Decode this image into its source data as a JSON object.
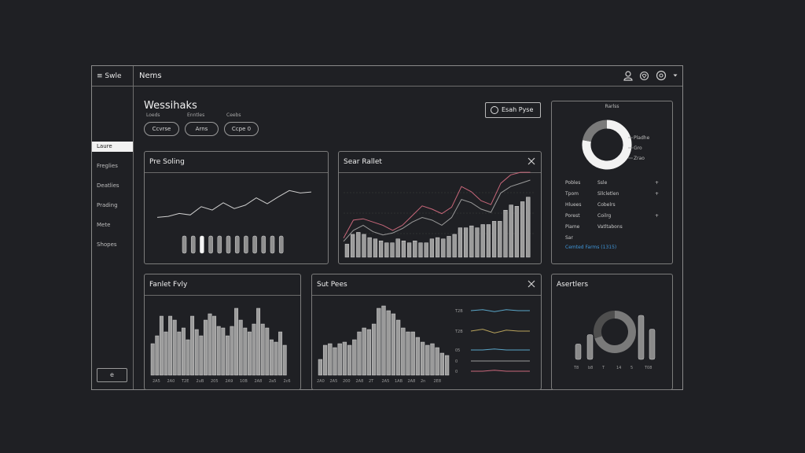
{
  "window": {
    "brand": "≡ Swle",
    "title": "Nems"
  },
  "header_icons": [
    "user-icon",
    "heart-icon",
    "settings-icon",
    "chevron-down-icon"
  ],
  "sidebar": {
    "items": [
      {
        "label": "Laure",
        "active": true
      },
      {
        "label": "Freglies",
        "active": false
      },
      {
        "label": "Deatlies",
        "active": false
      },
      {
        "label": "Prading",
        "active": false
      },
      {
        "label": "Mete",
        "active": false
      },
      {
        "label": "Shopes",
        "active": false
      }
    ],
    "footer_button": "e"
  },
  "page": {
    "title": "Wessihaks",
    "filters": [
      {
        "label": "Loeds",
        "value": "Ccvrse"
      },
      {
        "label": "Enntles",
        "value": "Arns"
      },
      {
        "label": "Ceebs",
        "value": "Ccpe 0"
      }
    ],
    "action_button": "Esah Pyse"
  },
  "panels": {
    "top_left": {
      "title": "Pre Soling"
    },
    "top_mid": {
      "title": "Sear Rallet"
    },
    "top_right": {
      "donut_title": "Rarlss",
      "donut_legend": [
        "Pladhe",
        "Gro",
        "Zrao"
      ],
      "rows": [
        {
          "k": "Pobles",
          "v": "Ssle",
          "mark": "+"
        },
        {
          "k": "Tpom",
          "v": "Sllcletlen",
          "mark": "+"
        },
        {
          "k": "Hluees",
          "v": "Cobelrs",
          "mark": ""
        },
        {
          "k": "Porest",
          "v": "Coilrg",
          "mark": "+"
        },
        {
          "k": "Piame",
          "v": "Vatltabons",
          "mark": ""
        },
        {
          "k": "Sar",
          "v": "",
          "mark": ""
        }
      ],
      "link": "Cemted Farms (1315)"
    },
    "bot_left": {
      "title": "Fanlet Fvly",
      "x_labels": [
        "2A5",
        "2A0",
        "T2E",
        "2uB",
        "205",
        "2A9",
        "10B",
        "2A8",
        "2a5",
        "2c6"
      ]
    },
    "bot_mid": {
      "title": "Sut Pees",
      "x_labels": [
        "2A0",
        "2A5",
        "200",
        "2A8",
        "2T",
        "2A5",
        "1AB",
        "2A8",
        "2n",
        "2E8"
      ],
      "legend_labels": [
        "T2B",
        "T2B",
        "05",
        "0",
        "0"
      ]
    },
    "bot_right": {
      "title": "Asertlers",
      "x_labels": [
        "T8",
        "b8",
        "T",
        "14",
        "5",
        "T08"
      ]
    }
  },
  "chart_data": [
    {
      "type": "line",
      "name": "pre-soling-line",
      "values": [
        30,
        32,
        38,
        35,
        52,
        45,
        60,
        48,
        55,
        70,
        58,
        72,
        85,
        80,
        82
      ]
    },
    {
      "type": "bar",
      "name": "pre-soling-bars",
      "values": [
        22,
        22,
        22,
        22,
        22,
        22,
        22,
        22,
        22,
        22,
        22,
        22
      ],
      "highlight_index": 2
    },
    {
      "type": "bar",
      "name": "sear-rallet",
      "values": [
        20,
        35,
        38,
        35,
        30,
        28,
        25,
        22,
        22,
        28,
        25,
        22,
        25,
        22,
        22,
        28,
        30,
        28,
        32,
        35,
        45,
        45,
        48,
        45,
        50,
        50,
        55,
        55,
        72,
        80,
        78,
        85,
        92
      ],
      "lines": [
        {
          "color": "#c9677a",
          "values": [
            10,
            38,
            40,
            35,
            30,
            22,
            30,
            45,
            60,
            55,
            48,
            58,
            90,
            82,
            68,
            62,
            95,
            108,
            112,
            112
          ]
        },
        {
          "color": "#9a9a9a",
          "values": [
            5,
            22,
            30,
            20,
            15,
            18,
            25,
            35,
            42,
            38,
            30,
            42,
            70,
            65,
            55,
            50,
            80,
            90,
            95,
            100
          ]
        }
      ]
    },
    {
      "type": "bar",
      "name": "fanlet-fvly",
      "values": [
        40,
        50,
        75,
        55,
        75,
        70,
        55,
        60,
        45,
        75,
        58,
        50,
        70,
        78,
        75,
        62,
        60,
        50,
        62,
        85,
        70,
        60,
        55,
        65,
        85,
        65,
        60,
        45,
        42,
        55,
        38
      ]
    },
    {
      "type": "bar",
      "name": "sut-pees",
      "values": [
        20,
        38,
        40,
        35,
        40,
        42,
        38,
        45,
        55,
        60,
        58,
        65,
        85,
        88,
        82,
        78,
        70,
        60,
        55,
        55,
        48,
        42,
        38,
        40,
        35,
        28,
        25
      ]
    },
    {
      "type": "line",
      "name": "sut-pees-legend",
      "series": [
        {
          "color": "#5aa6c8",
          "values": [
            0,
            1,
            -1,
            1,
            0,
            0
          ]
        },
        {
          "color": "#b8a35c",
          "values": [
            0,
            2,
            -2,
            1,
            0,
            0
          ]
        },
        {
          "color": "#5aa6c8",
          "values": [
            0,
            0,
            1,
            0,
            0,
            0
          ]
        },
        {
          "color": "#9a9a9a",
          "values": [
            0,
            0,
            0,
            0,
            0,
            0
          ]
        },
        {
          "color": "#c9677a",
          "values": [
            0,
            0,
            1,
            0,
            0,
            0
          ]
        }
      ]
    },
    {
      "type": "pie",
      "name": "rarlss-donut",
      "slices": [
        78,
        22
      ],
      "colors": [
        "#f2f2f2",
        "#7a7a7a"
      ]
    },
    {
      "type": "bar",
      "name": "asertlers",
      "values": [
        28,
        45,
        80,
        55
      ],
      "donut_slices": [
        70,
        30
      ]
    }
  ]
}
